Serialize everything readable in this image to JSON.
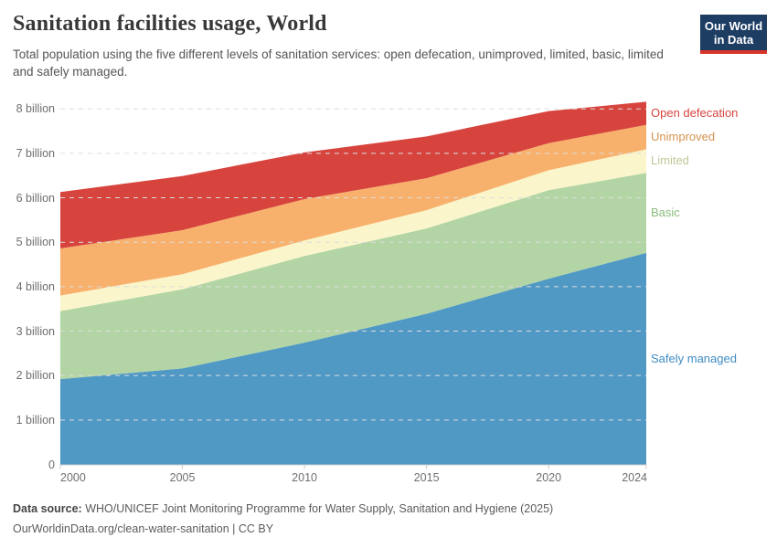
{
  "header": {
    "title": "Sanitation facilities usage, World",
    "subtitle": "Total population using the five different levels of sanitation services: open defecation, unimproved, limited, basic, limited and safely managed.",
    "logo": {
      "line1": "Our World",
      "line2": "in Data",
      "bg_color": "#1d3d63",
      "bar_color": "#d8352a"
    }
  },
  "chart_data": {
    "type": "area",
    "stacked": true,
    "unit": "billion people",
    "x": [
      2000,
      2005,
      2010,
      2015,
      2020,
      2024
    ],
    "xtick_labels": [
      "2000",
      "2005",
      "2010",
      "2015",
      "2020",
      "2024"
    ],
    "series": [
      {
        "name": "Safely managed",
        "color": "#5199c5",
        "label_color": "#3f8cc2",
        "values": [
          1.92,
          2.16,
          2.74,
          3.39,
          4.18,
          4.76
        ]
      },
      {
        "name": "Basic",
        "color": "#b3d5a5",
        "label_color": "#8abc7c",
        "values": [
          1.53,
          1.78,
          1.95,
          1.92,
          1.99,
          1.8
        ]
      },
      {
        "name": "Limited",
        "color": "#faf5ca",
        "label_color": "#c2c797",
        "values": [
          0.35,
          0.34,
          0.35,
          0.41,
          0.45,
          0.53
        ]
      },
      {
        "name": "Unimproved",
        "color": "#f8b16c",
        "label_color": "#d6924f",
        "values": [
          1.06,
          0.99,
          0.93,
          0.72,
          0.61,
          0.55
        ]
      },
      {
        "name": "Open defecation",
        "color": "#d7443e",
        "label_color": "#d7443e",
        "values": [
          1.27,
          1.22,
          1.05,
          0.94,
          0.72,
          0.52
        ]
      }
    ],
    "ytick_labels": [
      "0",
      "1 billion",
      "2 billion",
      "3 billion",
      "4 billion",
      "5 billion",
      "6 billion",
      "7 billion",
      "8 billion"
    ],
    "ylim": [
      0,
      8.5
    ],
    "grid": "dashed-horizontal",
    "grid_color": "#dddddd",
    "axis_color": "#cccccc",
    "legend_position": "right-edge-labels"
  },
  "footer": {
    "source_label": "Data source:",
    "source_text": " WHO/UNICEF Joint Monitoring Programme for Water Supply, Sanitation and Hygiene (2025)",
    "link_line": "OurWorldinData.org/clean-water-sanitation | CC BY"
  }
}
